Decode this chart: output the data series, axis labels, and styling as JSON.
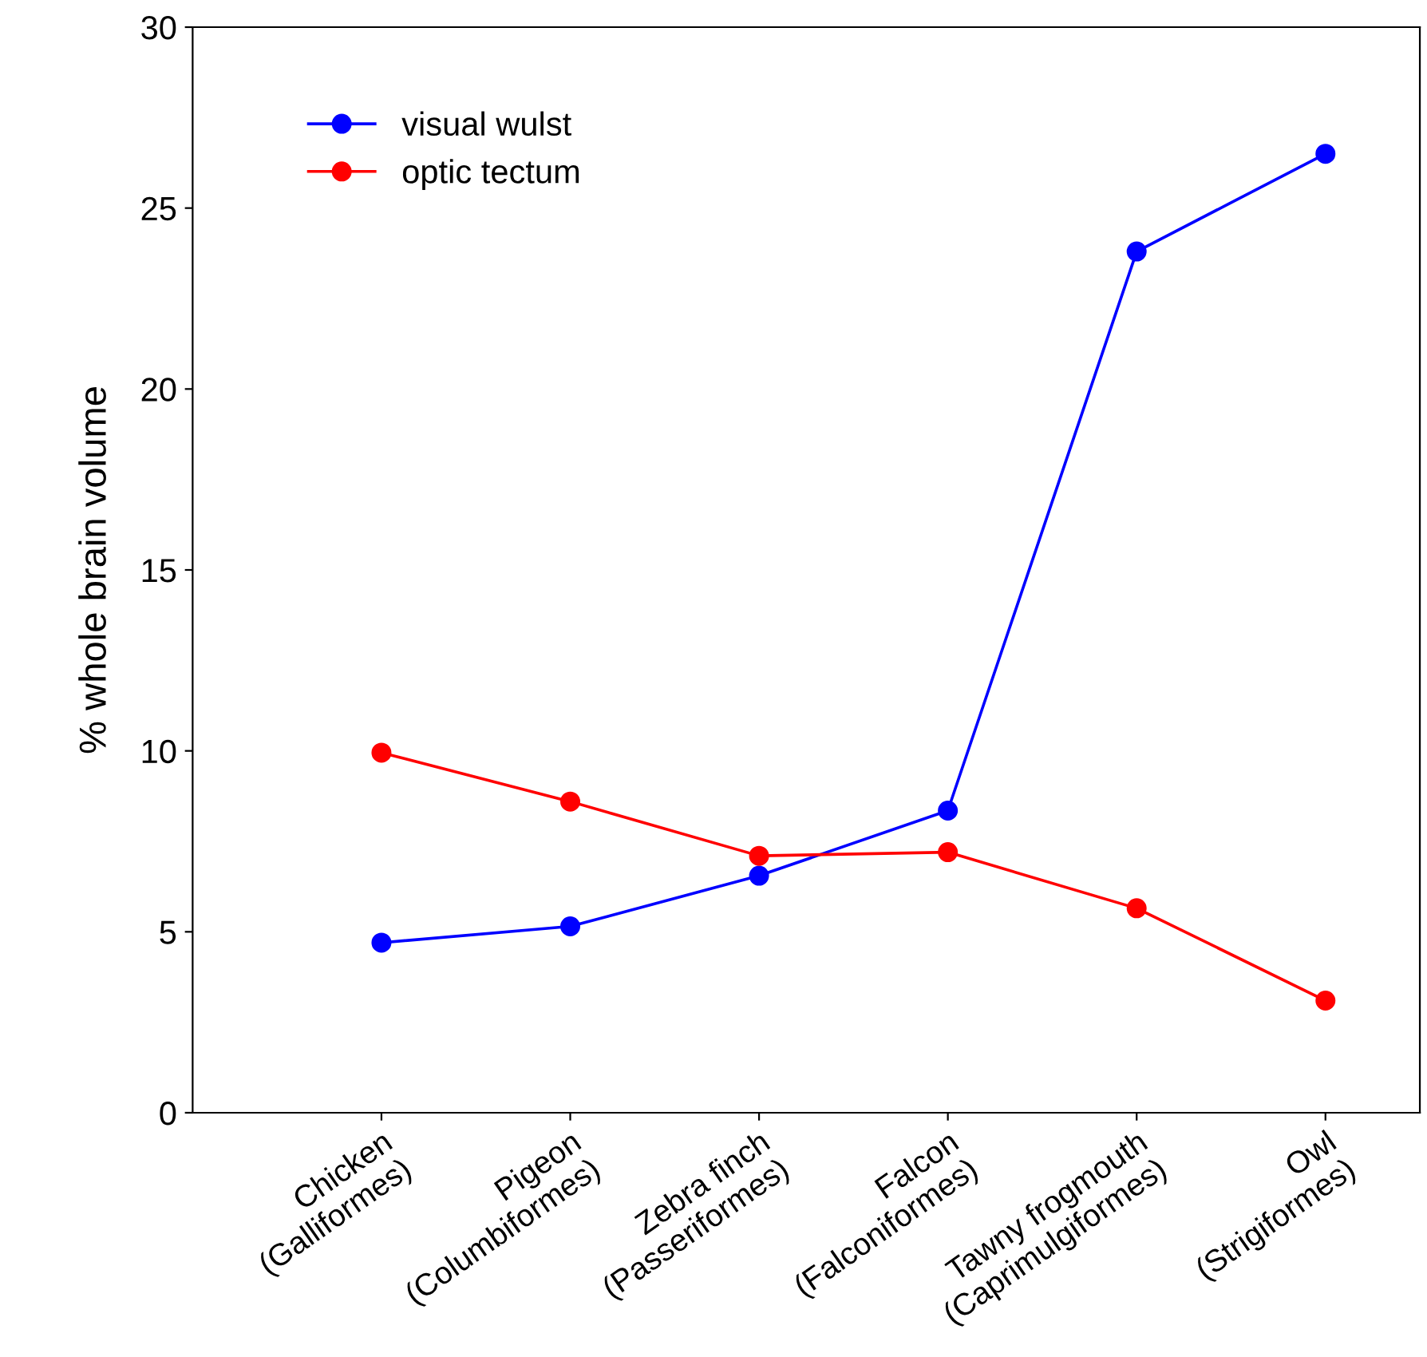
{
  "chart_data": {
    "type": "line",
    "ylabel": "% whole brain volume",
    "categories": [
      "Chicken\n(Galliformes)",
      "Pigeon\n(Columbiformes)",
      "Zebra finch\n(Passeriformes)",
      "Falcon\n(Falconiformes)",
      "Tawny frogmouth\n(Caprimulgiformes)",
      "Owl\n(Strigiformes)"
    ],
    "series": [
      {
        "name": "visual wulst",
        "color": "#0000ff",
        "values": [
          4.7,
          5.15,
          6.55,
          8.35,
          23.8,
          26.5
        ]
      },
      {
        "name": "optic tectum",
        "color": "#ff0000",
        "values": [
          9.95,
          8.6,
          7.1,
          7.2,
          5.65,
          3.1
        ]
      }
    ],
    "ylim": [
      0,
      30
    ],
    "yticks": [
      0,
      5,
      10,
      15,
      20,
      25,
      30
    ],
    "marker": "circle",
    "line_style": "solid",
    "legend": "top left",
    "grid": false
  }
}
